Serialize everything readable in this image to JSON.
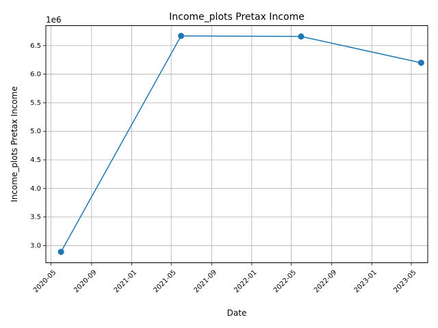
{
  "chart_data": {
    "type": "line",
    "title": "Income_plots Pretax Income",
    "xlabel": "Date",
    "ylabel": "Income_plots Pretax Income",
    "y_offset_label": "1e6",
    "x_ticks": [
      "2020-05",
      "2020-09",
      "2021-01",
      "2021-05",
      "2021-09",
      "2022-01",
      "2022-05",
      "2022-09",
      "2023-01",
      "2023-05"
    ],
    "y_ticks": [
      "3.0",
      "3.5",
      "4.0",
      "4.5",
      "5.0",
      "5.5",
      "6.0",
      "6.5"
    ],
    "xlim": [
      "2020-04-15",
      "2023-06-20"
    ],
    "ylim": [
      2700000,
      6850000
    ],
    "grid": true,
    "series": [
      {
        "color": "#1f77b4",
        "marker": "circle",
        "x": [
          "2020-05-31",
          "2021-05-31",
          "2022-05-31",
          "2023-05-31"
        ],
        "values": [
          2890000,
          6670000,
          6660000,
          6200000
        ]
      }
    ]
  }
}
